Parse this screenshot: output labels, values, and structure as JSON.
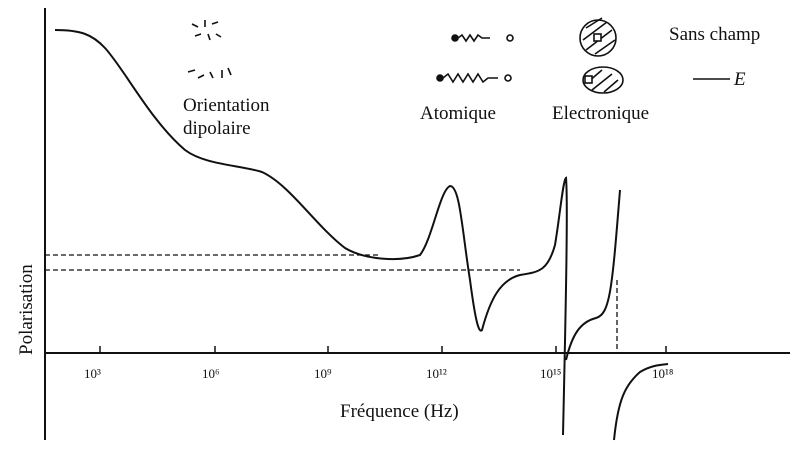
{
  "axis": {
    "y_label": "Polarisation",
    "x_label": "Fréquence (Hz)",
    "x_ticks": [
      "10³",
      "10⁶",
      "10⁹",
      "10¹²",
      "10¹⁵",
      "10¹⁸"
    ]
  },
  "legend": {
    "dipolar": [
      "Orientation",
      "dipolaire"
    ],
    "atomic": "Atomique",
    "electronic": "Electronique",
    "no_field": "Sans champ",
    "field": "E"
  }
}
